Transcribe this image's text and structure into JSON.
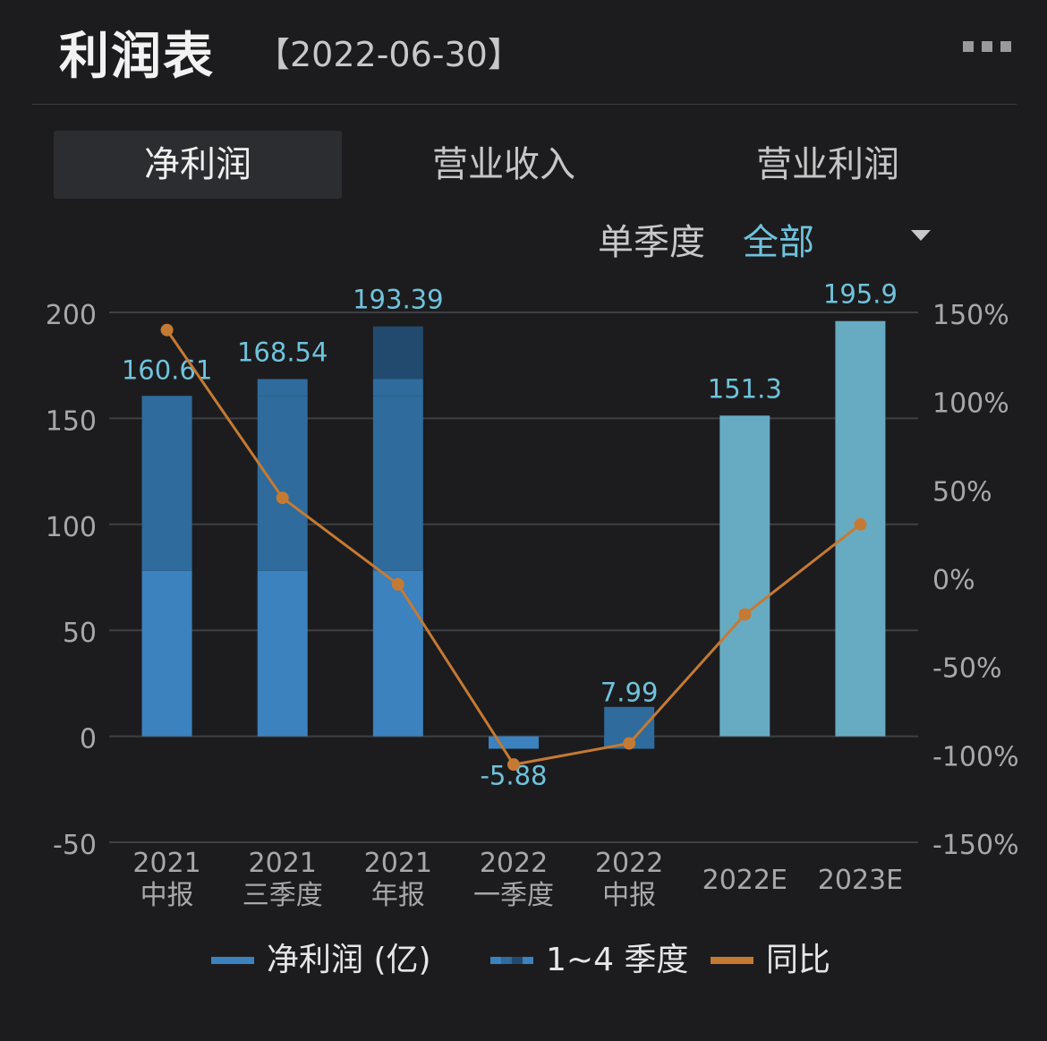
{
  "header": {
    "title": "利润表",
    "date": "【2022-06-30】"
  },
  "tabs": [
    {
      "label": "净利润",
      "active": true
    },
    {
      "label": "营业收入",
      "active": false
    },
    {
      "label": "营业利润",
      "active": false
    }
  ],
  "filter": {
    "label": "单季度",
    "selected": "全部"
  },
  "colors": {
    "net_profit": "#3b82bf",
    "quarters_mid": "#2f6b9c",
    "quarters_dark": "#214a6e",
    "estimate": "#67abc2",
    "yoy": "#c57a33",
    "label_cyan": "#6fc3dc"
  },
  "chart_data": {
    "type": "bar",
    "categories": [
      [
        "2021",
        "中报"
      ],
      [
        "2021",
        "三季度"
      ],
      [
        "2021",
        "年报"
      ],
      [
        "2022",
        "一季度"
      ],
      [
        "2022",
        "中报"
      ],
      [
        "2022E"
      ],
      [
        "2023E"
      ]
    ],
    "series": [
      {
        "name": "净利润 (亿)",
        "values": [
          160.61,
          168.54,
          193.39,
          -5.88,
          7.99,
          151.3,
          195.9
        ]
      },
      {
        "name": "1~4 季度",
        "stacks": [
          [
            78,
            82.61
          ],
          [
            78,
            82.61,
            7.93
          ],
          [
            78,
            82.61,
            7.93,
            24.85
          ],
          [
            -5.88
          ],
          [
            -5.88,
            13.87
          ],
          [],
          []
        ]
      },
      {
        "name": "同比",
        "values": [
          140,
          45,
          -4,
          -106,
          -94,
          -21,
          30
        ]
      }
    ],
    "estimate_flags": [
      false,
      false,
      false,
      false,
      false,
      true,
      true
    ],
    "value_labels": [
      "160.61",
      "168.54",
      "193.39",
      "-5.88",
      "7.99",
      "151.3",
      "195.9"
    ],
    "y_left": {
      "min": -50,
      "max": 200,
      "ticks": [
        "200",
        "150",
        "100",
        "50",
        "0",
        "-50"
      ]
    },
    "y_right": {
      "min": -150,
      "max": 150,
      "ticks": [
        "150%",
        "100%",
        "50%",
        "0%",
        "-50%",
        "-100%",
        "-150%"
      ]
    }
  },
  "legend": [
    {
      "label": "净利润 (亿)"
    },
    {
      "label": "1~4 季度"
    },
    {
      "label": "同比"
    }
  ]
}
